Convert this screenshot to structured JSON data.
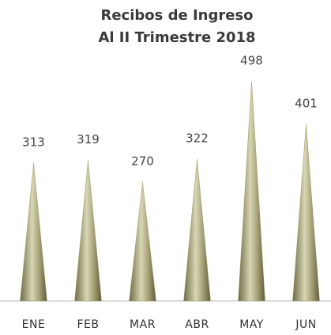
{
  "chart_data": {
    "type": "cone",
    "title": "Recibos de Ingreso",
    "subtitle": "Al II Trimestre 2018",
    "categories": [
      "ENE",
      "FEB",
      "MAR",
      "ABR",
      "MAY",
      "JUN"
    ],
    "values": [
      313,
      319,
      270,
      322,
      498,
      401
    ],
    "color": "#9c9a6c"
  }
}
